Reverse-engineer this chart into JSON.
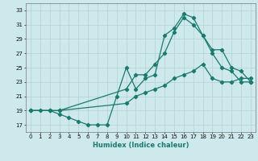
{
  "title": "",
  "xlabel": "Humidex (Indice chaleur)",
  "xlim": [
    -0.5,
    23.5
  ],
  "ylim": [
    16,
    34
  ],
  "xticks": [
    0,
    1,
    2,
    3,
    4,
    5,
    6,
    7,
    8,
    9,
    10,
    11,
    12,
    13,
    14,
    15,
    16,
    17,
    18,
    19,
    20,
    21,
    22,
    23
  ],
  "yticks": [
    17,
    19,
    21,
    23,
    25,
    27,
    29,
    31,
    33
  ],
  "bg_color": "#cee9eb",
  "grid_color": "#b8d4d6",
  "line_color": "#1a7a6e",
  "line1_x": [
    0,
    1,
    2,
    3,
    4,
    5,
    6,
    7,
    8,
    9,
    10,
    11,
    12,
    13,
    14,
    15,
    16,
    17,
    18,
    19,
    20,
    21,
    22,
    23
  ],
  "line1_y": [
    19,
    19,
    19,
    18.5,
    18,
    17.5,
    17,
    17,
    17,
    21,
    25,
    22,
    23.5,
    24,
    29.5,
    30.5,
    32.5,
    32,
    29.5,
    27,
    25,
    24.5,
    23,
    23
  ],
  "line2_x": [
    0,
    2,
    3,
    10,
    11,
    12,
    13,
    14,
    15,
    16,
    17,
    18,
    19,
    20,
    21,
    22,
    23
  ],
  "line2_y": [
    19,
    19,
    19,
    22,
    24,
    24,
    25.5,
    27,
    30,
    32,
    31,
    29.5,
    27.5,
    27.5,
    25,
    24.5,
    23
  ],
  "line3_x": [
    0,
    2,
    3,
    10,
    11,
    12,
    13,
    14,
    15,
    16,
    17,
    18,
    19,
    20,
    21,
    22,
    23
  ],
  "line3_y": [
    19,
    19,
    19,
    20,
    21,
    21.5,
    22,
    22.5,
    23.5,
    24,
    24.5,
    25.5,
    23.5,
    23,
    23,
    23.5,
    23.5
  ]
}
